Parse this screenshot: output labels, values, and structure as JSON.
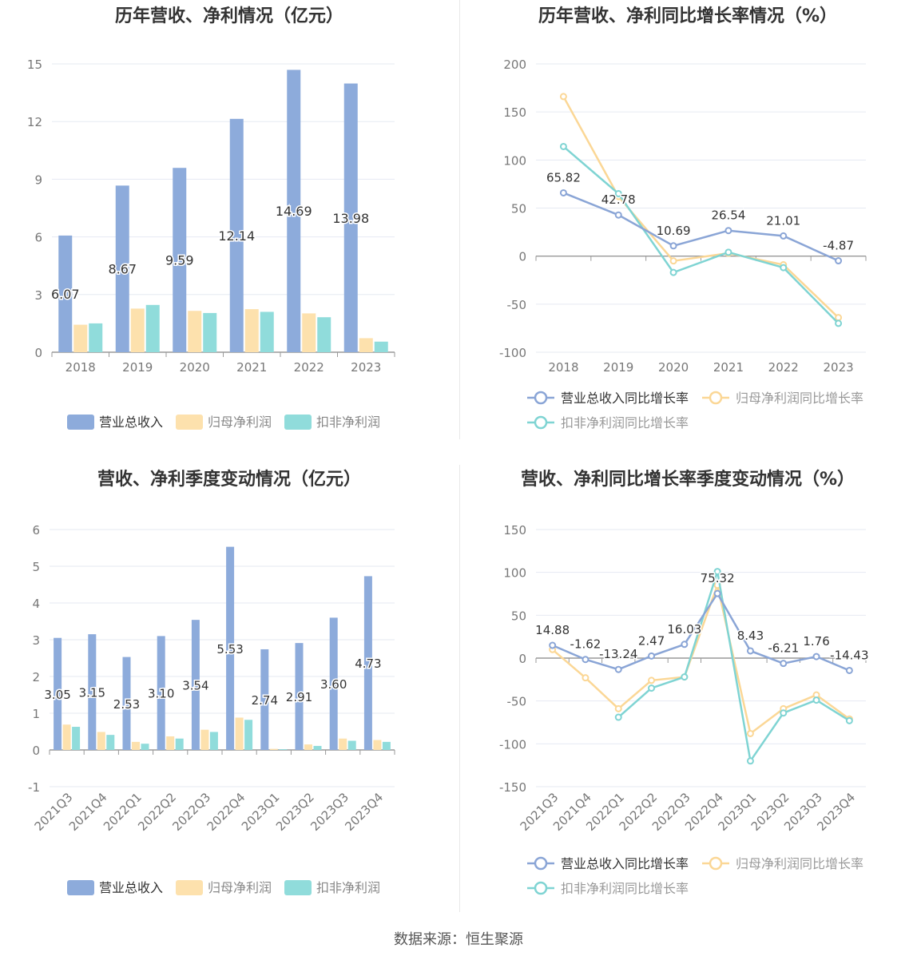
{
  "source": "数据来源：恒生聚源",
  "colors": {
    "revenue": "#8dabdb",
    "net": "#fde1ad",
    "deducted": "#90dcdb",
    "revenue_line": "#8aa5d6",
    "net_line": "#fbd796",
    "deducted_line": "#7fd4d3"
  },
  "chart_data": [
    {
      "id": "annual-amounts",
      "type": "bar",
      "title": "历年营收、净利情况（亿元）",
      "categories": [
        "2018",
        "2019",
        "2020",
        "2021",
        "2022",
        "2023"
      ],
      "ylim": [
        0,
        15
      ],
      "yticks": [
        0,
        3,
        6,
        9,
        12,
        15
      ],
      "series": [
        {
          "name": "营业总收入",
          "values": [
            6.07,
            8.67,
            9.59,
            12.14,
            14.69,
            13.98
          ],
          "labels": [
            "6.07",
            "8.67",
            "9.59",
            "12.14",
            "14.69",
            "13.98"
          ]
        },
        {
          "name": "归母净利润",
          "values": [
            1.43,
            2.27,
            2.15,
            2.24,
            2.02,
            0.73
          ]
        },
        {
          "name": "扣非净利润",
          "values": [
            1.5,
            2.46,
            2.04,
            2.1,
            1.82,
            0.55
          ]
        }
      ],
      "legend": "bottom"
    },
    {
      "id": "annual-growth",
      "type": "line",
      "title": "历年营收、净利同比增长率情况（%）",
      "categories": [
        "2018",
        "2019",
        "2020",
        "2021",
        "2022",
        "2023"
      ],
      "ylim": [
        -100,
        200
      ],
      "yticks": [
        -100,
        -50,
        0,
        50,
        100,
        150,
        200
      ],
      "series": [
        {
          "name": "营业总收入同比增长率",
          "values": [
            65.82,
            42.78,
            10.69,
            26.54,
            21.01,
            -4.87
          ],
          "labels": [
            "65.82",
            "42.78",
            "10.69",
            "26.54",
            "21.01",
            "-4.87"
          ]
        },
        {
          "name": "归母净利润同比增长率",
          "values": [
            166,
            62,
            -5,
            3,
            -9,
            -64
          ]
        },
        {
          "name": "扣非净利润同比增长率",
          "values": [
            114,
            65,
            -17,
            4,
            -12,
            -70
          ]
        }
      ],
      "legend": "bottom"
    },
    {
      "id": "quarterly-amounts",
      "type": "bar",
      "title": "营收、净利季度变动情况（亿元）",
      "categories": [
        "2021Q3",
        "2021Q4",
        "2022Q1",
        "2022Q2",
        "2022Q3",
        "2022Q4",
        "2023Q1",
        "2023Q2",
        "2023Q3",
        "2023Q4"
      ],
      "ylim": [
        -1,
        6
      ],
      "yticks": [
        -1,
        0,
        1,
        2,
        3,
        4,
        5,
        6
      ],
      "series": [
        {
          "name": "营业总收入",
          "values": [
            3.05,
            3.15,
            2.53,
            3.1,
            3.54,
            5.53,
            2.74,
            2.91,
            3.6,
            4.73
          ],
          "labels": [
            "3.05",
            "3.15",
            "2.53",
            "3.10",
            "3.54",
            "5.53",
            "2.74",
            "2.91",
            "3.60",
            "4.73"
          ]
        },
        {
          "name": "归母净利润",
          "values": [
            0.69,
            0.49,
            0.22,
            0.37,
            0.55,
            0.88,
            0.03,
            0.15,
            0.31,
            0.27
          ]
        },
        {
          "name": "扣非净利润",
          "values": [
            0.63,
            0.41,
            0.17,
            0.31,
            0.49,
            0.82,
            0.02,
            0.11,
            0.25,
            0.22
          ]
        }
      ],
      "legend": "bottom"
    },
    {
      "id": "quarterly-growth",
      "type": "line",
      "title": "营收、净利同比增长率季度变动情况（%）",
      "categories": [
        "2021Q3",
        "2021Q4",
        "2022Q1",
        "2022Q2",
        "2022Q3",
        "2022Q4",
        "2023Q1",
        "2023Q2",
        "2023Q3",
        "2023Q4"
      ],
      "ylim": [
        -150,
        150
      ],
      "yticks": [
        -150,
        -100,
        -50,
        0,
        50,
        100,
        150
      ],
      "series": [
        {
          "name": "营业总收入同比增长率",
          "values": [
            14.88,
            -1.62,
            -13.24,
            2.47,
            16.03,
            75.32,
            8.43,
            -6.21,
            1.76,
            -14.43
          ],
          "labels": [
            "14.88",
            "-1.62",
            "-13.24",
            "2.47",
            "16.03",
            "75.32",
            "8.43",
            "-6.21",
            "1.76",
            "-14.43"
          ]
        },
        {
          "name": "归母净利润同比增长率",
          "values": [
            10,
            -23,
            -59,
            -26,
            -22,
            85,
            -88,
            -59,
            -43,
            -71
          ]
        },
        {
          "name": "扣非净利润同比增长率",
          "values": [
            null,
            null,
            -69,
            -35,
            -22,
            101,
            -120,
            -64,
            -49,
            -73
          ]
        }
      ],
      "legend": "bottom"
    }
  ]
}
